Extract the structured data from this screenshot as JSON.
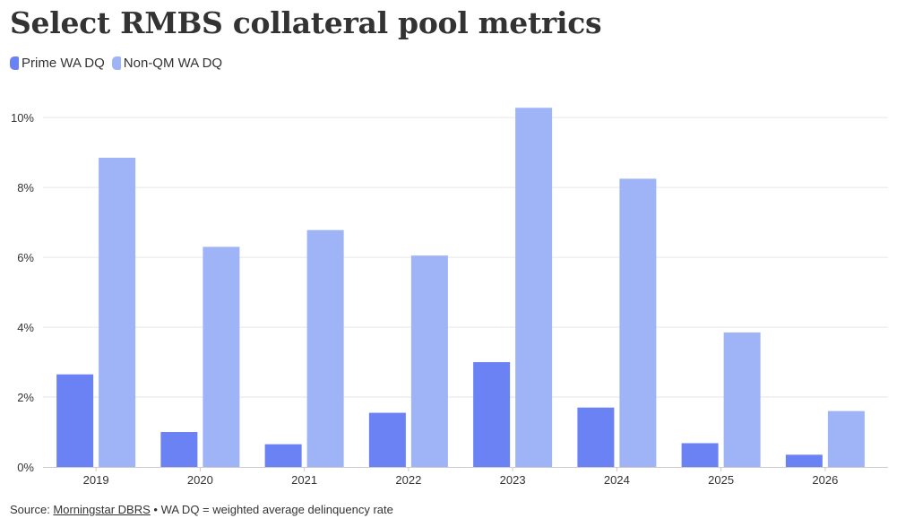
{
  "title": "Select RMBS collateral pool metrics",
  "source": {
    "prefix": "Source: ",
    "link_text": "Morningstar DBRS",
    "suffix": " • WA DQ = weighted average delinquency rate"
  },
  "colors": {
    "prime": "#6b82f5",
    "nonqm": "#9fb3f7",
    "grid": "#e6e6e6",
    "axis": "#cccccc"
  },
  "chart_data": {
    "type": "bar",
    "categories": [
      "2019",
      "2020",
      "2021",
      "2022",
      "2023",
      "2024",
      "2025",
      "2026"
    ],
    "series": [
      {
        "name": "Prime WA DQ",
        "values": [
          2.65,
          1.0,
          0.65,
          1.55,
          3.0,
          1.7,
          0.68,
          0.35
        ]
      },
      {
        "name": "Non-QM WA DQ",
        "values": [
          8.85,
          6.3,
          6.78,
          6.05,
          10.28,
          8.25,
          3.85,
          1.6
        ]
      }
    ],
    "yticks": [
      "0%",
      "2%",
      "4%",
      "6%",
      "8%",
      "10%"
    ],
    "ylim": [
      0,
      10.8
    ],
    "grid": true,
    "legend": "top-left"
  }
}
